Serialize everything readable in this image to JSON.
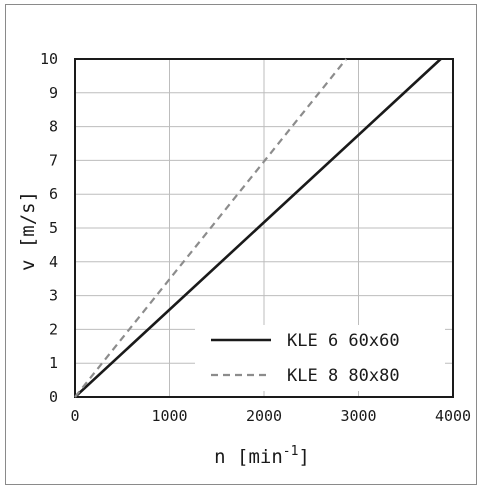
{
  "chart_data": {
    "type": "line",
    "title": "",
    "xlabel": "n [min",
    "xlabel_sup": "-1",
    "xlabel_end": "]",
    "ylabel": "v [m/s]",
    "xlim": [
      0,
      4000
    ],
    "ylim": [
      0,
      10
    ],
    "x_ticks": [
      0,
      1000,
      2000,
      3000,
      4000
    ],
    "y_ticks": [
      0,
      1,
      2,
      3,
      4,
      5,
      6,
      7,
      8,
      9,
      10
    ],
    "x_tick_labels": [
      "0",
      "1000",
      "2000",
      "3000",
      "4000"
    ],
    "y_tick_labels": [
      "0",
      "1",
      "2",
      "3",
      "4",
      "5",
      "6",
      "7",
      "8",
      "9",
      "10"
    ],
    "grid": true,
    "legend_position": "bottom-right",
    "series": [
      {
        "name": "KLE 6 60x60",
        "style": "solid",
        "color": "#1a1a1a",
        "x": [
          0,
          3870
        ],
        "y": [
          0,
          10
        ]
      },
      {
        "name": "KLE 8 80x80",
        "style": "dashed",
        "color": "#8c8c8c",
        "x": [
          0,
          2870
        ],
        "y": [
          0,
          10
        ]
      }
    ]
  }
}
